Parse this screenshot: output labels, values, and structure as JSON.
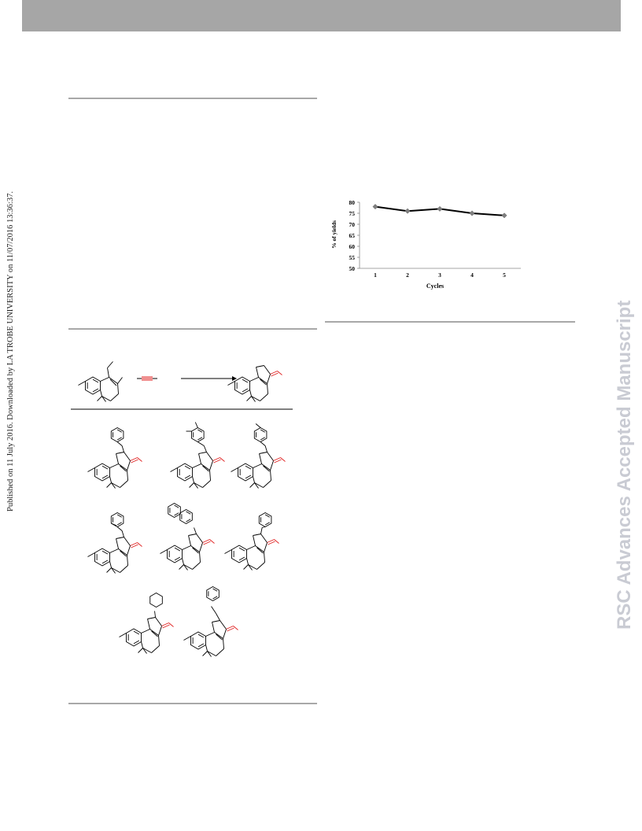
{
  "sidebar": {
    "published_note": "Published on 11 July 2016. Downloaded by LA TROBE UNIVERSITY on 11/07/2016 13:36:37.",
    "journal_watermark": "RSC Advances Accepted Manuscript"
  },
  "chart_data": {
    "type": "line",
    "x": [
      1,
      2,
      3,
      4,
      5
    ],
    "categories": [
      "1",
      "2",
      "3",
      "4",
      "5"
    ],
    "series": [
      {
        "values": [
          78,
          76,
          77,
          75,
          74
        ]
      }
    ],
    "xlabel": "Cycles",
    "ylabel": "% of yields",
    "ylim": [
      50,
      80
    ],
    "yticks": [
      50,
      55,
      60,
      65,
      70,
      75,
      80
    ],
    "grid": false,
    "line_color": "#000000",
    "marker_color": "#7f7f7f"
  },
  "colors": {
    "header": "#a6a6a6",
    "rule": "#a8a8a8",
    "watermark": "#c9cbd3",
    "highlight_bond": "#e02020"
  }
}
